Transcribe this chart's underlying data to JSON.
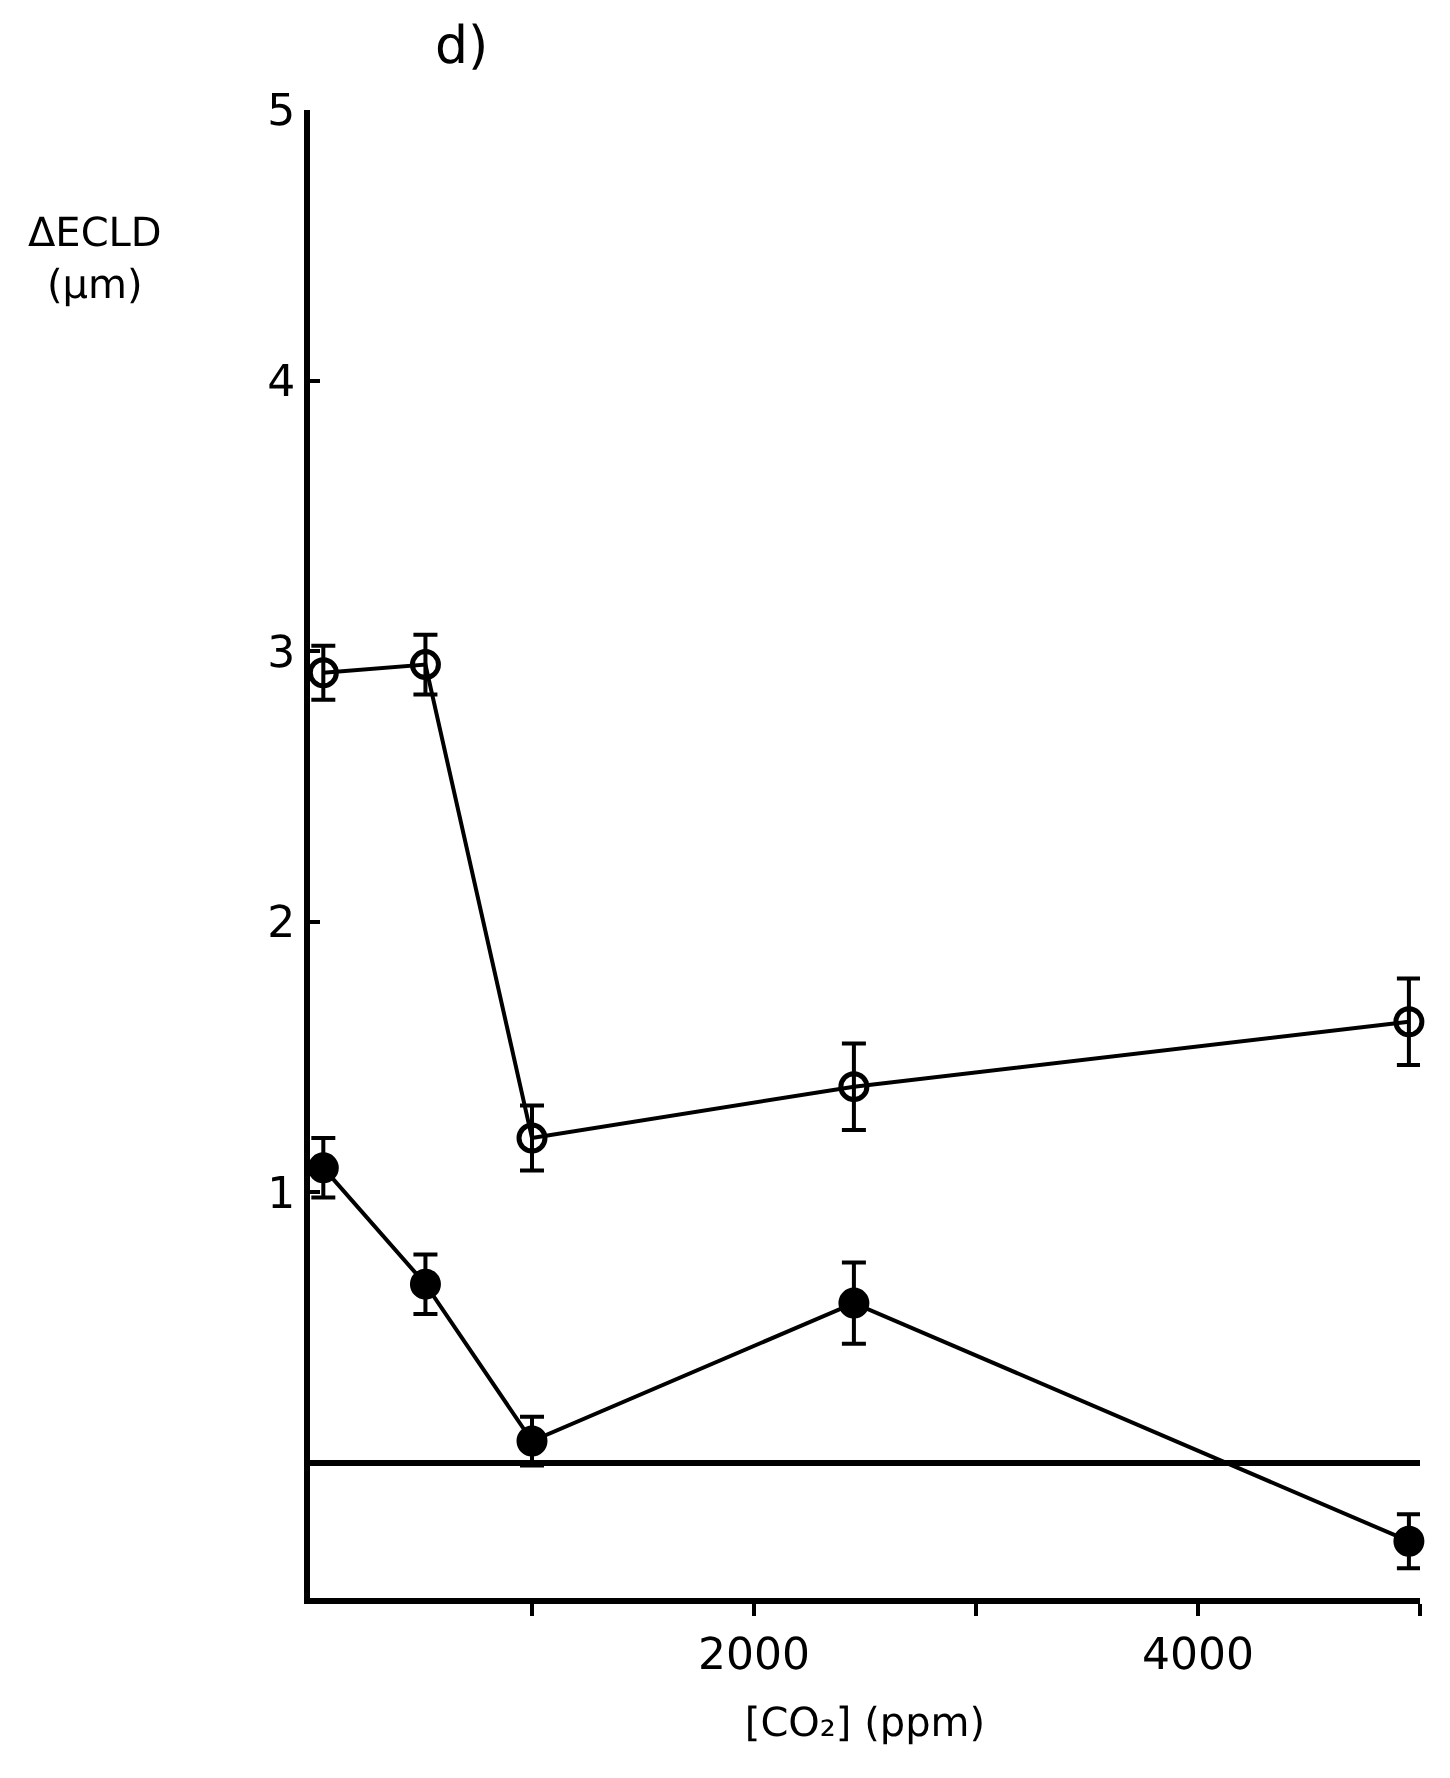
{
  "chart_data": {
    "type": "line",
    "title": "d)",
    "xlabel": "[CO₂] (ppm)",
    "ylabel": "ΔECLD (µm)",
    "xlim": [
      0,
      5000
    ],
    "xticks": [
      {
        "value": 1000,
        "label": null
      },
      2000,
      {
        "value": 3000,
        "label": null
      },
      4000,
      {
        "value": 5000,
        "label": null
      }
    ],
    "ylim": [
      -0.5,
      5
    ],
    "yticks": [
      1,
      2,
      3,
      4,
      5
    ],
    "marker": "circle",
    "line_style": "solid",
    "series": [
      {
        "color": "#000000",
        "marker": "circle-open",
        "x": [
          60,
          520,
          1000,
          2450,
          4950
        ],
        "values": [
          2.92,
          2.95,
          1.2,
          1.39,
          1.63
        ],
        "errors": [
          0.1,
          0.11,
          0.12,
          0.16,
          0.16
        ]
      },
      {
        "color": "#000000",
        "marker": "circle",
        "x": [
          60,
          520,
          1000,
          2450,
          4950
        ],
        "values": [
          1.09,
          0.66,
          0.08,
          0.59,
          -0.29
        ],
        "errors": [
          0.11,
          0.11,
          0.09,
          0.15,
          0.1
        ]
      }
    ]
  }
}
